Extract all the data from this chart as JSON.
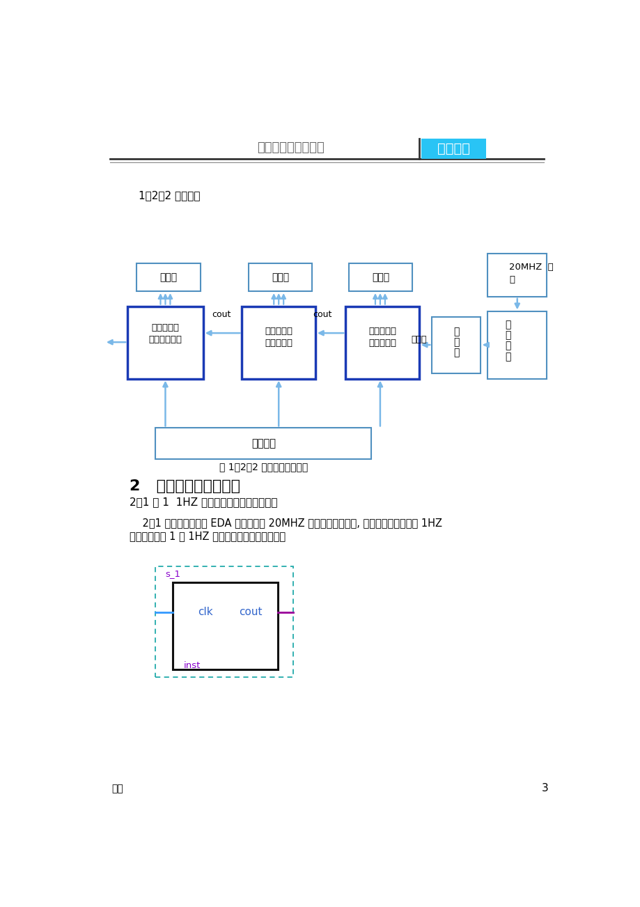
{
  "header_text": "页眉页脚可一键删除",
  "header_badge": "仅供参考",
  "header_badge_color": "#29C4F5",
  "section_title": "1．2．2 设计框图",
  "section2_title": "2   各个模块程序的设计",
  "section2_sub": "2．1 图 1  1HZ 秒脉冲的分频模块元件符号",
  "para1": "    2．1 输入的秒脉冲由 EDA 实训仪上的 20MHZ 晶振经过分频得到, 设计一个输出频率为 1HZ",
  "para2": "的秒脉冲。图 1 是 1HZ 秒脉冲的分频模块元件符号",
  "diagram_caption": "图 1．2．2 数字钟的原理框图",
  "page_number": "3",
  "side_label": "综合",
  "dark_box_color": "#1A3AB5",
  "light_box_color": "#6BB8E8",
  "arrow_color": "#7AB8E8",
  "thin_box_color": "#5090C0",
  "crystal_box_color": "#4488C0",
  "s1_color": "#8800CC",
  "inst_color": "#8800CC",
  "clk_cout_color": "#3366CC",
  "left_line_color": "#3399FF",
  "right_line_color": "#990099",
  "dashed_box_color": "#22AAAA"
}
